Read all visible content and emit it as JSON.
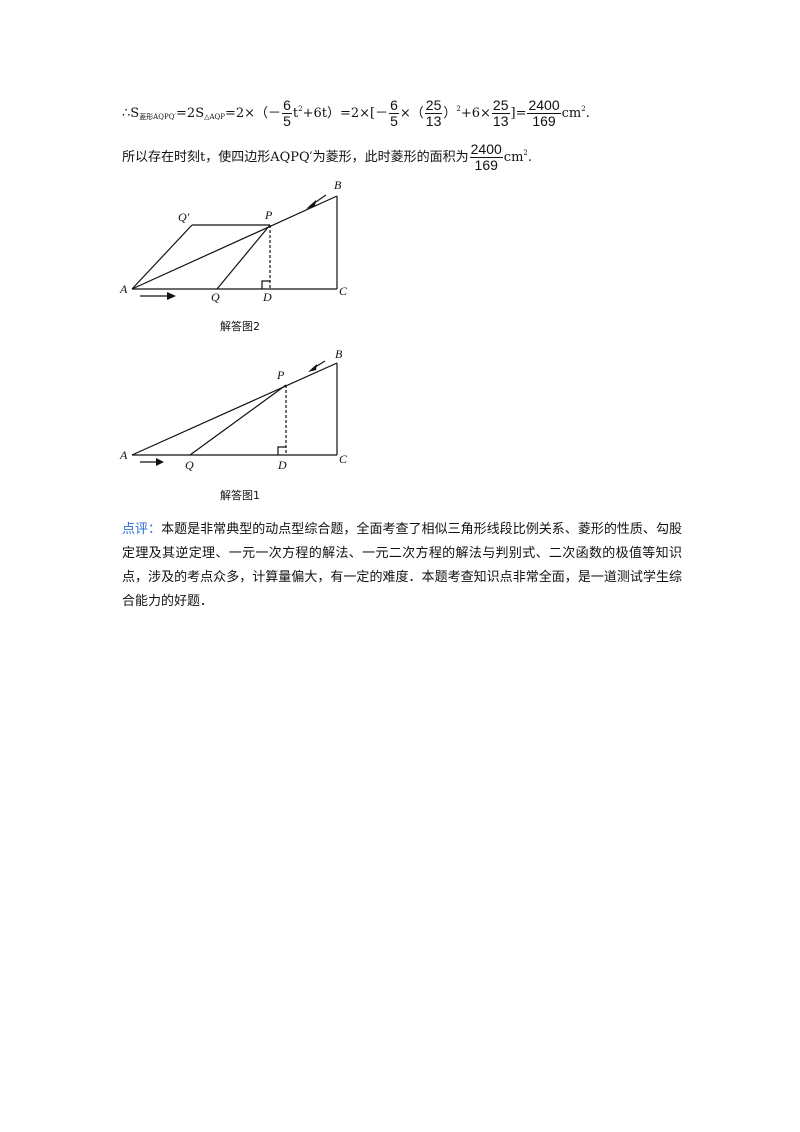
{
  "formula_line": {
    "therefore": "∴",
    "s": "S",
    "sub_rhombus": "菱形AQPQ′",
    "eq1": "=2S",
    "sub_triangle": "△AQP",
    "p1": "=2×（－",
    "frac1": {
      "num": "6",
      "den": "5"
    },
    "t": "t",
    "sup2": "2",
    "p2": "+6t）=2×[－",
    "frac2": {
      "num": "6",
      "den": "5"
    },
    "p3": "×（",
    "frac3": {
      "num": "25",
      "den": "13"
    },
    "p4": "）",
    "sup2b": "2",
    "p5": "+6×",
    "frac4": {
      "num": "25",
      "den": "13"
    },
    "p6": "]=",
    "frac5": {
      "num": "2400",
      "den": "169"
    },
    "p7": "cm",
    "sup2c": "2",
    "p8": "."
  },
  "conclusion_line": {
    "text": "所以存在时刻t，使四边形AQPQ′为菱形，此时菱形的面积为",
    "frac": {
      "num": "2400",
      "den": "169"
    },
    "unit": "cm",
    "sup": "2",
    "end": "."
  },
  "figure2": {
    "caption": "解答图2",
    "labels": {
      "A": "A",
      "B": "B",
      "C": "C",
      "D": "D",
      "P": "P",
      "Q": "Q",
      "Qp": "Q′"
    }
  },
  "figure1": {
    "caption": "解答图1",
    "labels": {
      "A": "A",
      "B": "B",
      "C": "C",
      "D": "D",
      "P": "P",
      "Q": "Q"
    }
  },
  "comment": {
    "tag": "点评：",
    "body": "本题是非常典型的动点型综合题，全面考查了相似三角形线段比例关系、菱形的性质、勾股定理及其逆定理、一元一次方程的解法、一元二次方程的解法与判别式、二次函数的极值等知识点，涉及的考点众多，计算量偏大，有一定的难度．本题考查知识点非常全面，是一道测试学生综合能力的好题．"
  }
}
